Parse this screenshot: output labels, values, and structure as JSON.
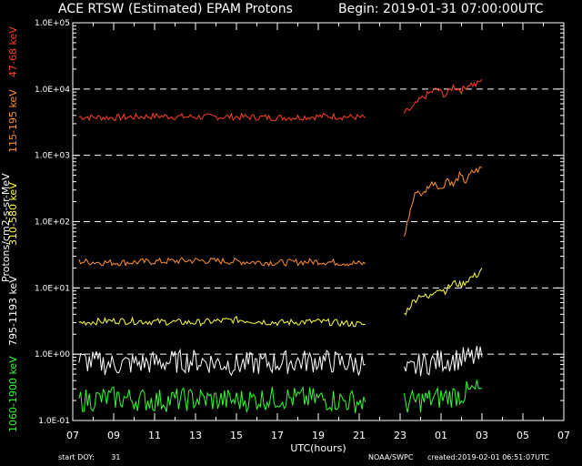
{
  "header": {
    "title": "ACE RTSW (Estimated) EPAM Protons",
    "begin": "Begin: 2019-01-31 07:00:00UTC"
  },
  "footer": {
    "start_doy_label": "start DOY:",
    "start_doy_value": "31",
    "source": "NOAA/SWPC",
    "created": "created:2019-02-01 06:51:07UTC"
  },
  "colors": {
    "background": "#000000",
    "axes": "#ffffff",
    "ch1": "#ff4020",
    "ch2": "#ff9030",
    "ch3": "#ffff40",
    "ch4": "#ffffff",
    "ch5": "#30ff30"
  },
  "ylabels": {
    "ch1": "47-68 keV",
    "ch2": "115-195 keV",
    "ch3": "310-580 keV",
    "unit": "Protons/cm2-s-sr-MeV",
    "ch4": "795-1193 keV",
    "ch5": "1060-1900 keV"
  },
  "chart_data": {
    "type": "line",
    "title": "ACE RTSW (Estimated) EPAM Protons",
    "xlabel": "UTC(hours)",
    "ylabel": "Protons/cm2-s-sr-MeV",
    "yscale": "log",
    "ylim": [
      0.1,
      100000
    ],
    "xlim": [
      0,
      24
    ],
    "x_tick_labels": [
      "07",
      "09",
      "11",
      "13",
      "15",
      "17",
      "19",
      "21",
      "23",
      "01",
      "03",
      "05",
      "07"
    ],
    "y_tick_labels": [
      "1.0E-01",
      "1.0E+00",
      "1.0E+01",
      "1.0E+02",
      "1.0E+03",
      "1.0E+04",
      "1.0E+05"
    ],
    "dashed_gridlines_at": [
      1,
      10,
      100,
      1000,
      10000
    ],
    "series": [
      {
        "name": "47-68 keV",
        "color_key": "ch1",
        "segments": [
          {
            "x": [
              0.3,
              2,
              4,
              6,
              8,
              10,
              11.5,
              12.5,
              13.5,
              14.3
            ],
            "y": [
              3800,
              3700,
              3900,
              3800,
              3800,
              3700,
              3800,
              3900,
              3800,
              3700
            ]
          },
          {
            "x": [
              16.2,
              16.6,
              17,
              17.4,
              17.8,
              18.2,
              18.6,
              19,
              19.4,
              19.7,
              20
            ],
            "y": [
              4300,
              5200,
              7000,
              8500,
              10000,
              8000,
              11000,
              9500,
              12000,
              11500,
              14000
            ]
          }
        ]
      },
      {
        "name": "115-195 keV",
        "color_key": "ch2",
        "segments": [
          {
            "x": [
              0.3,
              2,
              4,
              6,
              8,
              10,
              12,
              14.3
            ],
            "y": [
              25,
              24,
              25,
              26,
              25,
              24,
              25,
              23
            ]
          },
          {
            "x": [
              16.2,
              16.5,
              16.8,
              17.1,
              17.4,
              17.7,
              18,
              18.3,
              18.6,
              18.9,
              19.2,
              19.5,
              19.8,
              20
            ],
            "y": [
              60,
              150,
              300,
              250,
              350,
              400,
              300,
              450,
              350,
              500,
              400,
              550,
              600,
              650
            ]
          }
        ]
      },
      {
        "name": "310-580 keV",
        "color_key": "ch3",
        "segments": [
          {
            "x": [
              0.3,
              2,
              4,
              6,
              8,
              10,
              12,
              14.3
            ],
            "y": [
              3,
              3.2,
              3.1,
              3,
              3.3,
              3,
              3.1,
              2.8
            ]
          },
          {
            "x": [
              16.2,
              16.6,
              17,
              17.4,
              17.8,
              18.2,
              18.6,
              19,
              19.4,
              19.8,
              20
            ],
            "y": [
              4,
              6,
              8,
              7,
              10,
              9,
              12,
              11,
              14,
              16,
              20
            ]
          }
        ]
      },
      {
        "name": "795-1193 keV",
        "color_key": "ch4",
        "segments": [
          {
            "x": [
              0.3,
              2,
              4,
              6,
              8,
              10,
              12,
              14.3
            ],
            "y": [
              0.8,
              0.7,
              0.75,
              0.8,
              0.7,
              0.75,
              0.8,
              0.7
            ]
          },
          {
            "x": [
              16.2,
              17,
              18,
              19,
              20
            ],
            "y": [
              0.5,
              0.7,
              0.8,
              0.85,
              0.9
            ]
          }
        ]
      },
      {
        "name": "1060-1900 keV",
        "color_key": "ch5",
        "segments": [
          {
            "x": [
              0.3,
              2,
              4,
              6,
              8,
              10,
              12,
              14.3
            ],
            "y": [
              0.2,
              0.22,
              0.2,
              0.21,
              0.2,
              0.22,
              0.21,
              0.19
            ]
          },
          {
            "x": [
              16.2,
              17,
              18,
              19,
              20
            ],
            "y": [
              0.18,
              0.2,
              0.22,
              0.25,
              0.3
            ]
          }
        ]
      }
    ]
  }
}
